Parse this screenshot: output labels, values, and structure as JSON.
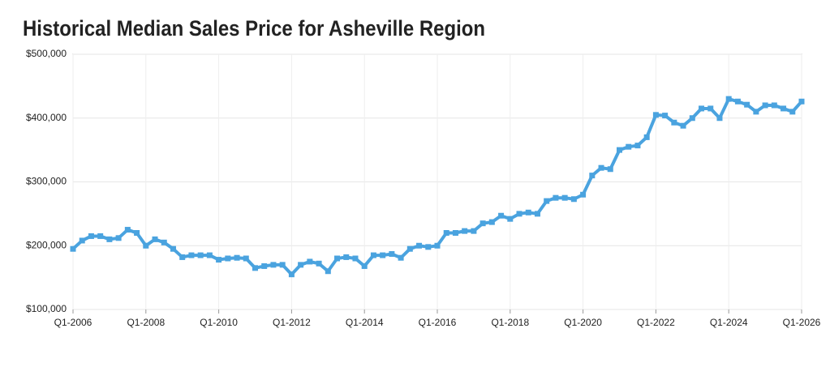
{
  "chart_data": {
    "type": "line",
    "title": "Historical Median Sales Price for Asheville Region",
    "categories": [
      "Q1-2006",
      null,
      null,
      null,
      null,
      null,
      null,
      null,
      "Q1-2008",
      null,
      null,
      null,
      null,
      null,
      null,
      null,
      "Q1-2010",
      null,
      null,
      null,
      null,
      null,
      null,
      null,
      "Q1-2012",
      null,
      null,
      null,
      null,
      null,
      null,
      null,
      "Q1-2014",
      null,
      null,
      null,
      null,
      null,
      null,
      null,
      "Q1-2016",
      null,
      null,
      null,
      null,
      null,
      null,
      null,
      "Q1-2018",
      null,
      null,
      null,
      null,
      null,
      null,
      null,
      "Q1-2020",
      null,
      null,
      null,
      null,
      null,
      null,
      null,
      "Q1-2022",
      null,
      null,
      null,
      null,
      null,
      null,
      null,
      "Q1-2024",
      null,
      null,
      null,
      null,
      null,
      null,
      null,
      "Q1-2026"
    ],
    "series": [
      {
        "name": "Median Sales Price",
        "color": "#4aa3df",
        "values": [
          195000,
          208000,
          215000,
          215000,
          210000,
          212000,
          225000,
          220000,
          200000,
          210000,
          205000,
          195000,
          182000,
          185000,
          185000,
          185000,
          178000,
          180000,
          181000,
          180000,
          165000,
          168000,
          170000,
          170000,
          155000,
          170000,
          175000,
          172000,
          160000,
          180000,
          182000,
          180000,
          168000,
          185000,
          185000,
          187000,
          181000,
          195000,
          200000,
          198000,
          200000,
          220000,
          220000,
          223000,
          223000,
          235000,
          237000,
          247000,
          242000,
          250000,
          252000,
          250000,
          270000,
          275000,
          275000,
          273000,
          280000,
          310000,
          322000,
          320000,
          350000,
          355000,
          357000,
          370000,
          405000,
          404000,
          393000,
          388000,
          400000,
          415000,
          415000,
          400000,
          430000,
          426000,
          421000,
          410000,
          420000,
          420000,
          415000,
          410000,
          426000
        ]
      }
    ],
    "ylim": [
      100000,
      500000
    ],
    "yticks": [
      {
        "value": 100000,
        "label": "$100,000"
      },
      {
        "value": 200000,
        "label": "$200,000"
      },
      {
        "value": 300000,
        "label": "$300,000"
      },
      {
        "value": 400000,
        "label": "$400,000"
      },
      {
        "value": 500000,
        "label": "$500,000"
      }
    ],
    "grid": true
  }
}
